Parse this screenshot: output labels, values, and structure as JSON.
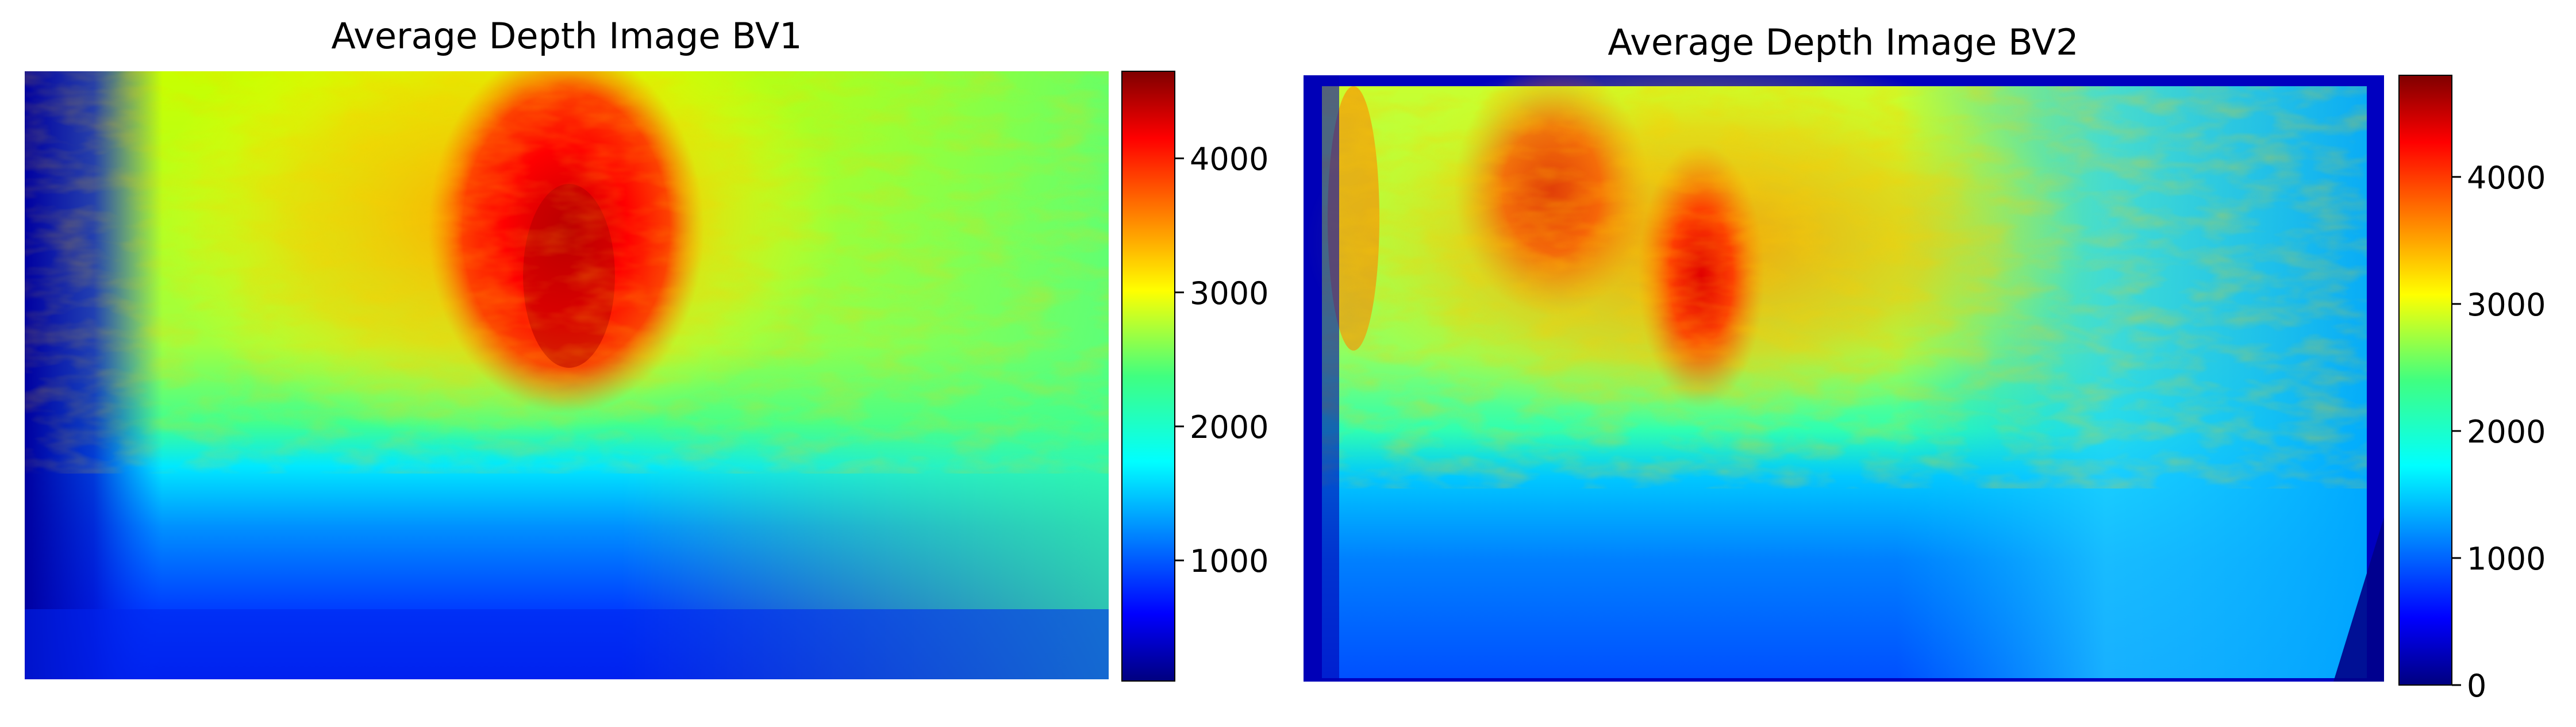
{
  "chart_data": [
    {
      "type": "heatmap",
      "title": "Average Depth Image BV1",
      "xlabel": "",
      "ylabel": "",
      "axes_visible": false,
      "colormap": "jet",
      "colorbar": {
        "range": [
          100,
          4650
        ],
        "ticks": [
          1000,
          2000,
          3000,
          4000
        ],
        "tick_labels": [
          "1000",
          "2000",
          "3000",
          "4000"
        ]
      },
      "features": [
        {
          "description": "vertical band of maximum depth near horizontal center",
          "value": 4500
        },
        {
          "description": "upper background region",
          "value": 3100
        },
        {
          "description": "upper-right region",
          "value": 2600
        },
        {
          "description": "lower floor region",
          "value": 1000
        },
        {
          "description": "left dark edge",
          "value": 200
        }
      ]
    },
    {
      "type": "heatmap",
      "title": "Average Depth Image BV2",
      "xlabel": "",
      "ylabel": "",
      "axes_visible": false,
      "colormap": "jet",
      "colorbar": {
        "range": [
          0,
          4800
        ],
        "ticks": [
          0,
          1000,
          2000,
          3000,
          4000
        ],
        "tick_labels": [
          "0",
          "1000",
          "2000",
          "3000",
          "4000"
        ]
      },
      "features": [
        {
          "description": "noisy upper-left region",
          "value": 3300
        },
        {
          "description": "vertical band near center-left",
          "value": 4100
        },
        {
          "description": "upper-right region",
          "value": 1600
        },
        {
          "description": "lower floor region",
          "value": 1000
        },
        {
          "description": "frame border",
          "value": 100
        }
      ]
    }
  ]
}
